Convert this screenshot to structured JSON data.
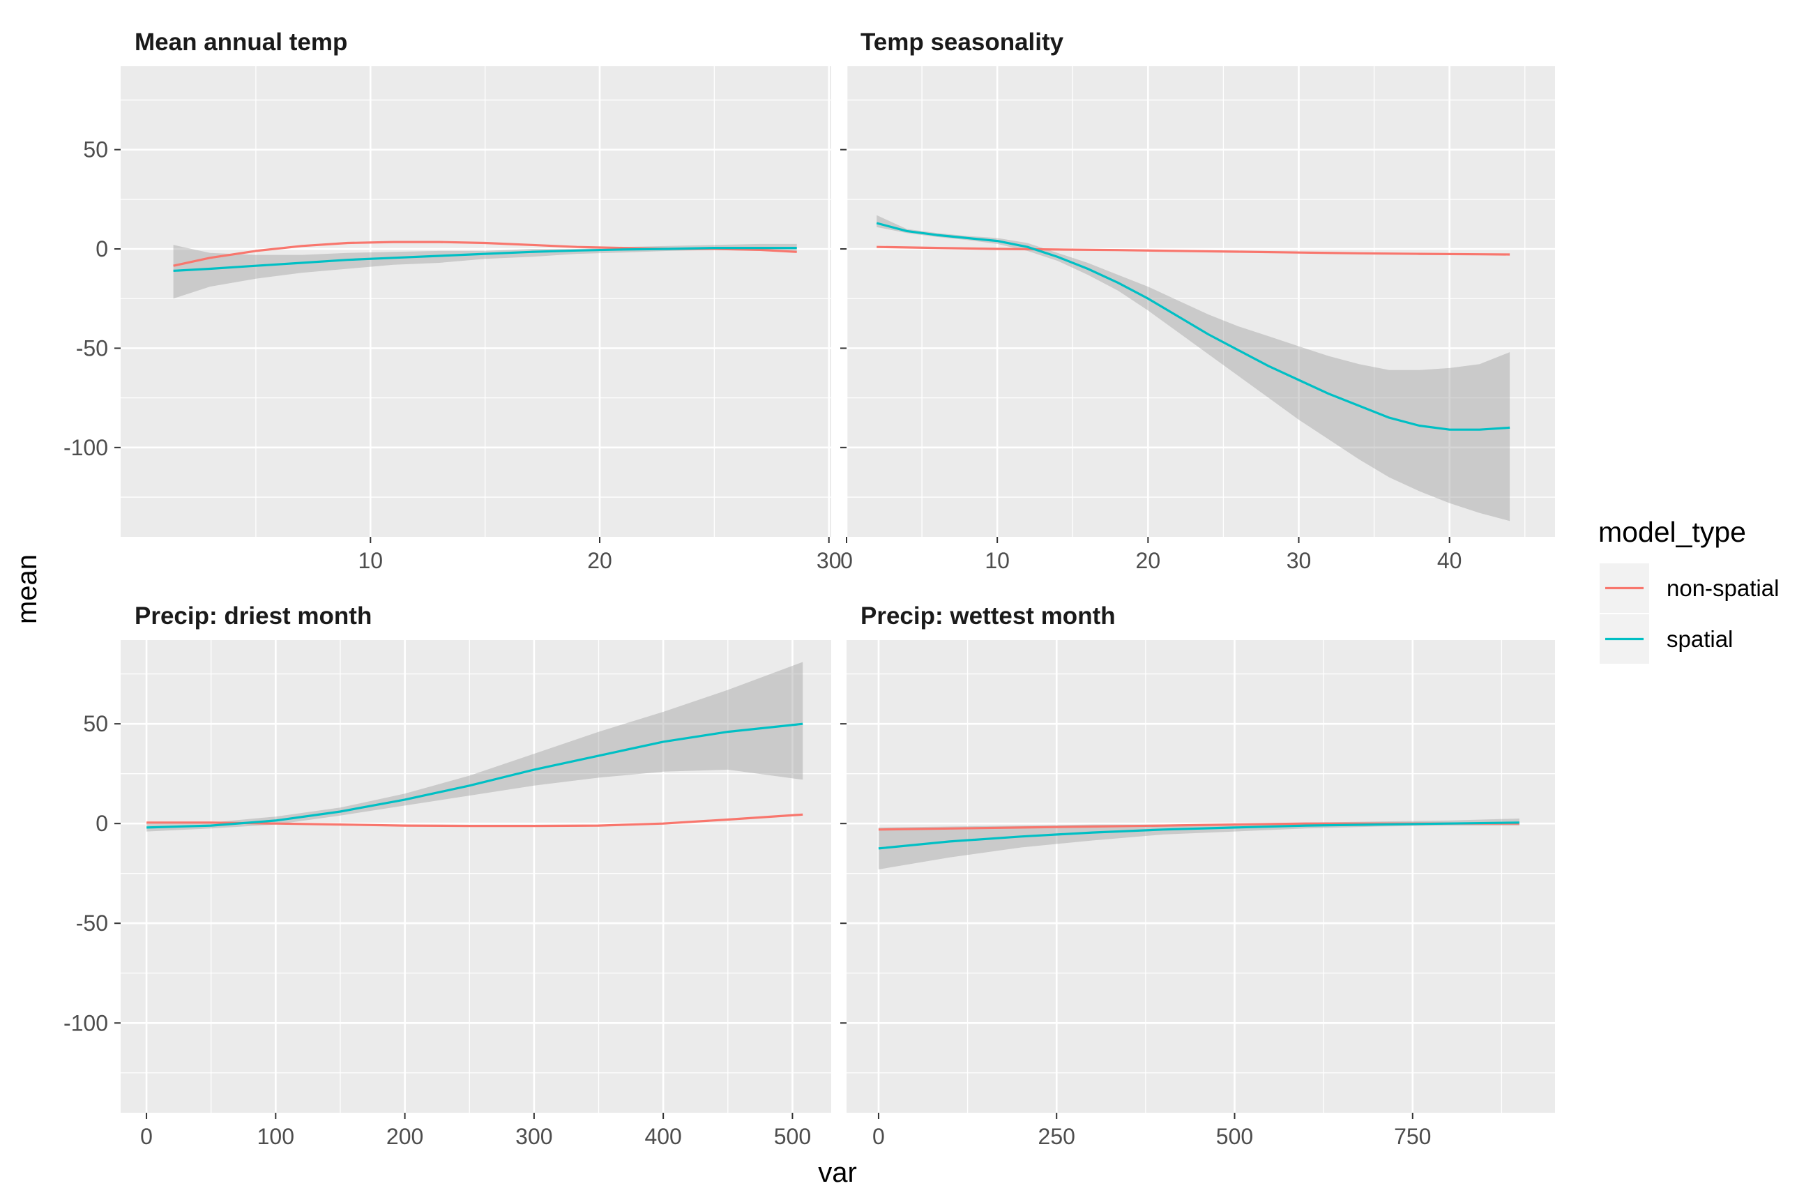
{
  "chart_data": {
    "type": "line",
    "xlabel": "var",
    "ylabel": "mean",
    "legend": {
      "title": "model_type",
      "position": "right",
      "entries": [
        {
          "label": "non-spatial",
          "color": "#F8766D"
        },
        {
          "label": "spatial",
          "color": "#00BFC4"
        }
      ]
    },
    "ribbon_color": "#999999",
    "panel_background": "#EBEBEB",
    "grid": true,
    "ylim": [
      -145,
      92
    ],
    "yticks": [
      50,
      0,
      -50,
      -100
    ],
    "ytick_labels": [
      "50",
      "0",
      "-50",
      "-100"
    ],
    "panels": [
      {
        "title": "Mean annual temp",
        "xlim": [
          -0.9,
          30.1
        ],
        "xticks": [
          10,
          20,
          30
        ],
        "xtick_labels": [
          "10",
          "20",
          "30"
        ],
        "series": [
          {
            "name": "non-spatial",
            "x": [
              1.4,
              3,
              5,
              7,
              9,
              11,
              13,
              15,
              17,
              19,
              21,
              23,
              25,
              27,
              28.6
            ],
            "y": [
              -8.5,
              -4.5,
              -1,
              1.5,
              3,
              3.5,
              3.5,
              3,
              2,
              1,
              0.5,
              0,
              0,
              -0.5,
              -1.5
            ]
          },
          {
            "name": "spatial",
            "x": [
              1.4,
              3,
              5,
              7,
              9,
              11,
              13,
              15,
              17,
              19,
              21,
              23,
              25,
              27,
              28.6
            ],
            "y": [
              -11,
              -10,
              -8.5,
              -7,
              -5.5,
              -4.5,
              -3.5,
              -2.5,
              -1.5,
              -0.8,
              -0.3,
              0,
              0.5,
              0.5,
              0.5
            ]
          }
        ],
        "ribbon": {
          "x": [
            1.4,
            3,
            5,
            7,
            9,
            11,
            13,
            15,
            17,
            19,
            21,
            23,
            25,
            27,
            28.6
          ],
          "ymin": [
            -25,
            -19,
            -15,
            -12,
            -10,
            -8,
            -7,
            -5,
            -4,
            -2.5,
            -1.8,
            -1,
            -0.5,
            -1,
            -1.5
          ],
          "ymax": [
            2,
            -2,
            -3,
            -3,
            -2,
            -1.5,
            -1,
            -1,
            0,
            0,
            1,
            1.5,
            2,
            2.5,
            2.5
          ]
        }
      },
      {
        "title": "Temp seasonality",
        "xlim": [
          0,
          47
        ],
        "xticks": [
          0,
          10,
          20,
          30,
          40
        ],
        "xtick_labels": [
          "0",
          "10",
          "20",
          "30",
          "40"
        ],
        "series": [
          {
            "name": "non-spatial",
            "x": [
              2,
              6,
              10,
              14,
              18,
              22,
              26,
              30,
              34,
              38,
              42,
              44
            ],
            "y": [
              1,
              0.5,
              0,
              -0.3,
              -0.6,
              -1,
              -1.4,
              -1.8,
              -2.2,
              -2.5,
              -2.7,
              -2.8
            ]
          },
          {
            "name": "spatial",
            "x": [
              2,
              4,
              6,
              8,
              10,
              12,
              14,
              16,
              18,
              20,
              22,
              24,
              26,
              28,
              30,
              32,
              34,
              36,
              38,
              40,
              42,
              44
            ],
            "y": [
              13,
              9,
              7,
              5.5,
              4,
              1,
              -4,
              -10,
              -17,
              -25,
              -34,
              -43,
              -51,
              -59,
              -66,
              -73,
              -79,
              -85,
              -89,
              -91,
              -91,
              -90
            ]
          }
        ],
        "ribbon": {
          "x": [
            2,
            4,
            6,
            8,
            10,
            12,
            14,
            16,
            18,
            20,
            22,
            24,
            26,
            28,
            30,
            32,
            34,
            36,
            38,
            40,
            42,
            44
          ],
          "ymin": [
            11,
            8,
            6,
            4.5,
            2.5,
            -1,
            -6,
            -13,
            -21,
            -31,
            -42,
            -53,
            -64,
            -75,
            -86,
            -96,
            -106,
            -115,
            -122,
            -128,
            -133,
            -137
          ],
          "ymax": [
            17,
            10,
            8,
            6.5,
            5.5,
            3,
            -2,
            -7,
            -13,
            -19,
            -26,
            -33,
            -39,
            -44,
            -49,
            -54,
            -58,
            -61,
            -61,
            -60,
            -58,
            -52
          ]
        }
      },
      {
        "title": "Precip: driest month",
        "xlim": [
          -20,
          530
        ],
        "xticks": [
          0,
          100,
          200,
          300,
          400,
          500
        ],
        "xtick_labels": [
          "0",
          "100",
          "200",
          "300",
          "400",
          "500"
        ],
        "series": [
          {
            "name": "non-spatial",
            "x": [
              0,
              50,
              100,
              150,
              200,
              250,
              300,
              350,
              400,
              450,
              508
            ],
            "y": [
              0.5,
              0.5,
              0,
              -0.5,
              -1,
              -1.2,
              -1.2,
              -1,
              0,
              2,
              4.5
            ]
          },
          {
            "name": "spatial",
            "x": [
              0,
              50,
              100,
              150,
              200,
              250,
              300,
              350,
              400,
              450,
              508
            ],
            "y": [
              -2,
              -1,
              1.5,
              6,
              12,
              19,
              27,
              34,
              41,
              46,
              50
            ]
          }
        ],
        "ribbon": {
          "x": [
            0,
            50,
            100,
            150,
            200,
            250,
            300,
            350,
            400,
            450,
            508
          ],
          "ymin": [
            -4,
            -2.5,
            -0.5,
            4,
            9,
            14,
            19,
            23,
            26,
            27,
            22
          ],
          "ymax": [
            0,
            0.5,
            3.5,
            8,
            15,
            24,
            35,
            46,
            56,
            67,
            81
          ]
        }
      },
      {
        "title": "Precip: wettest month",
        "xlim": [
          -45,
          950
        ],
        "xticks": [
          0,
          250,
          500,
          750
        ],
        "xtick_labels": [
          "0",
          "250",
          "500",
          "750"
        ],
        "series": [
          {
            "name": "non-spatial",
            "x": [
              0,
              100,
              200,
              300,
              400,
              500,
              600,
              700,
              800,
              900
            ],
            "y": [
              -3,
              -2.5,
              -2,
              -1.5,
              -1,
              -0.5,
              0,
              0,
              0,
              0
            ]
          },
          {
            "name": "spatial",
            "x": [
              0,
              100,
              200,
              300,
              400,
              500,
              600,
              700,
              800,
              900
            ],
            "y": [
              -12.5,
              -9,
              -6.5,
              -4.5,
              -3,
              -2,
              -1,
              -0.5,
              0,
              0.5
            ]
          }
        ],
        "ribbon": {
          "x": [
            0,
            100,
            200,
            300,
            400,
            500,
            600,
            700,
            800,
            900
          ],
          "ymin": [
            -23,
            -17,
            -12,
            -8.5,
            -5.5,
            -4,
            -2.5,
            -1.5,
            -1,
            -1
          ],
          "ymax": [
            -2,
            -1.5,
            -1,
            -0.5,
            -0.5,
            0,
            0.5,
            1,
            1.5,
            2.5
          ]
        }
      }
    ]
  }
}
